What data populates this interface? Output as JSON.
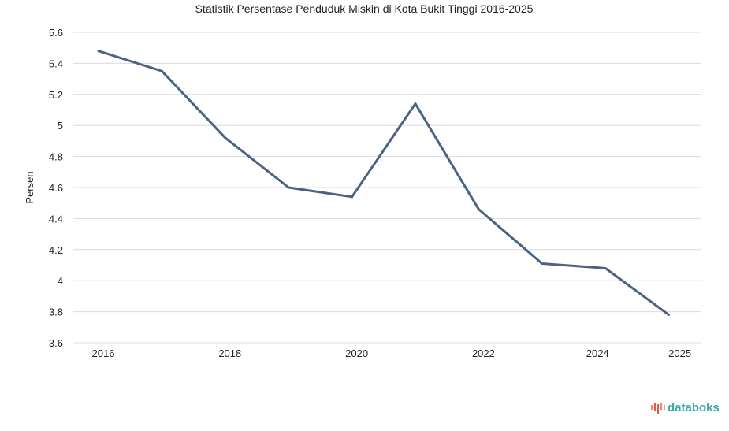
{
  "chart_data": {
    "type": "line",
    "title": "Statistik Persentase Penduduk Miskin di Kota Bukit Tinggi 2016-2025",
    "xlabel": "",
    "ylabel": "Persen",
    "ylim": [
      3.6,
      5.6
    ],
    "yticks": [
      "3.6",
      "3.8",
      "4",
      "4.2",
      "4.4",
      "4.6",
      "4.8",
      "5",
      "5.2",
      "5.4",
      "5.6"
    ],
    "xticks": [
      "2016",
      "2018",
      "2020",
      "2022",
      "2024",
      "2025"
    ],
    "grid": true,
    "series": [
      {
        "name": "Persen",
        "color": "#4a6384",
        "x": [
          2016,
          2017,
          2018,
          2019,
          2020,
          2021,
          2022,
          2023,
          2024,
          2025
        ],
        "values": [
          5.48,
          5.35,
          4.92,
          4.6,
          4.54,
          5.14,
          4.46,
          4.11,
          4.08,
          3.78
        ]
      }
    ]
  },
  "brand": {
    "name": "databoks"
  }
}
